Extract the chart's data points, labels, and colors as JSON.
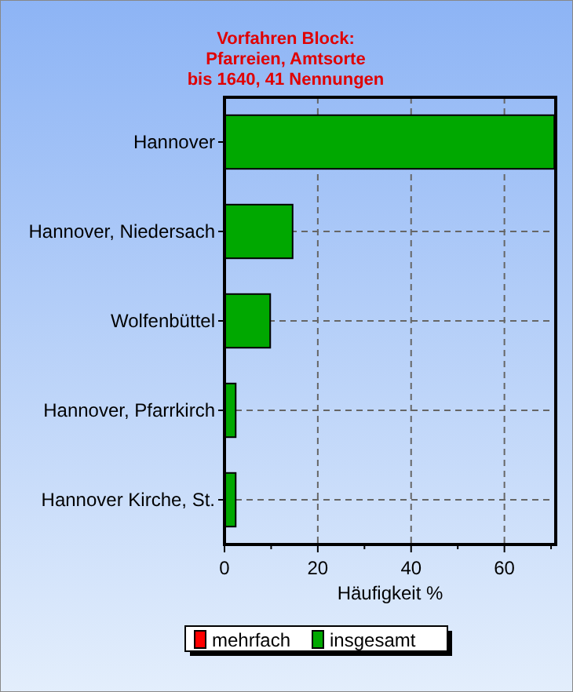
{
  "chart_data": {
    "type": "bar",
    "orientation": "horizontal",
    "title": "Vorfahren Block:\nPfarreien, Amtsorte\nbis 1640, 41 Nennungen",
    "xlabel": "Häufigkeit %",
    "categories": [
      "Hannover",
      "Hannover, Niedersach",
      "Wolfenbüttel",
      "Hannover, Pfarrkirch",
      "Hannover Kirche, St."
    ],
    "series": [
      {
        "name": "mehrfach",
        "color": "#ff0000",
        "values": [
          0,
          0,
          0,
          0,
          0
        ]
      },
      {
        "name": "insgesamt",
        "color": "#00a800",
        "values": [
          70.7,
          14.6,
          9.8,
          2.4,
          2.4
        ]
      }
    ],
    "xlim": [
      0,
      71
    ],
    "xticks": [
      0,
      {
        "value": 10,
        "label": null
      },
      20,
      {
        "value": 30,
        "label": null
      },
      40,
      {
        "value": 50,
        "label": null
      },
      60,
      {
        "value": 70,
        "label": null
      }
    ],
    "grid": true,
    "legend": "bottom"
  }
}
